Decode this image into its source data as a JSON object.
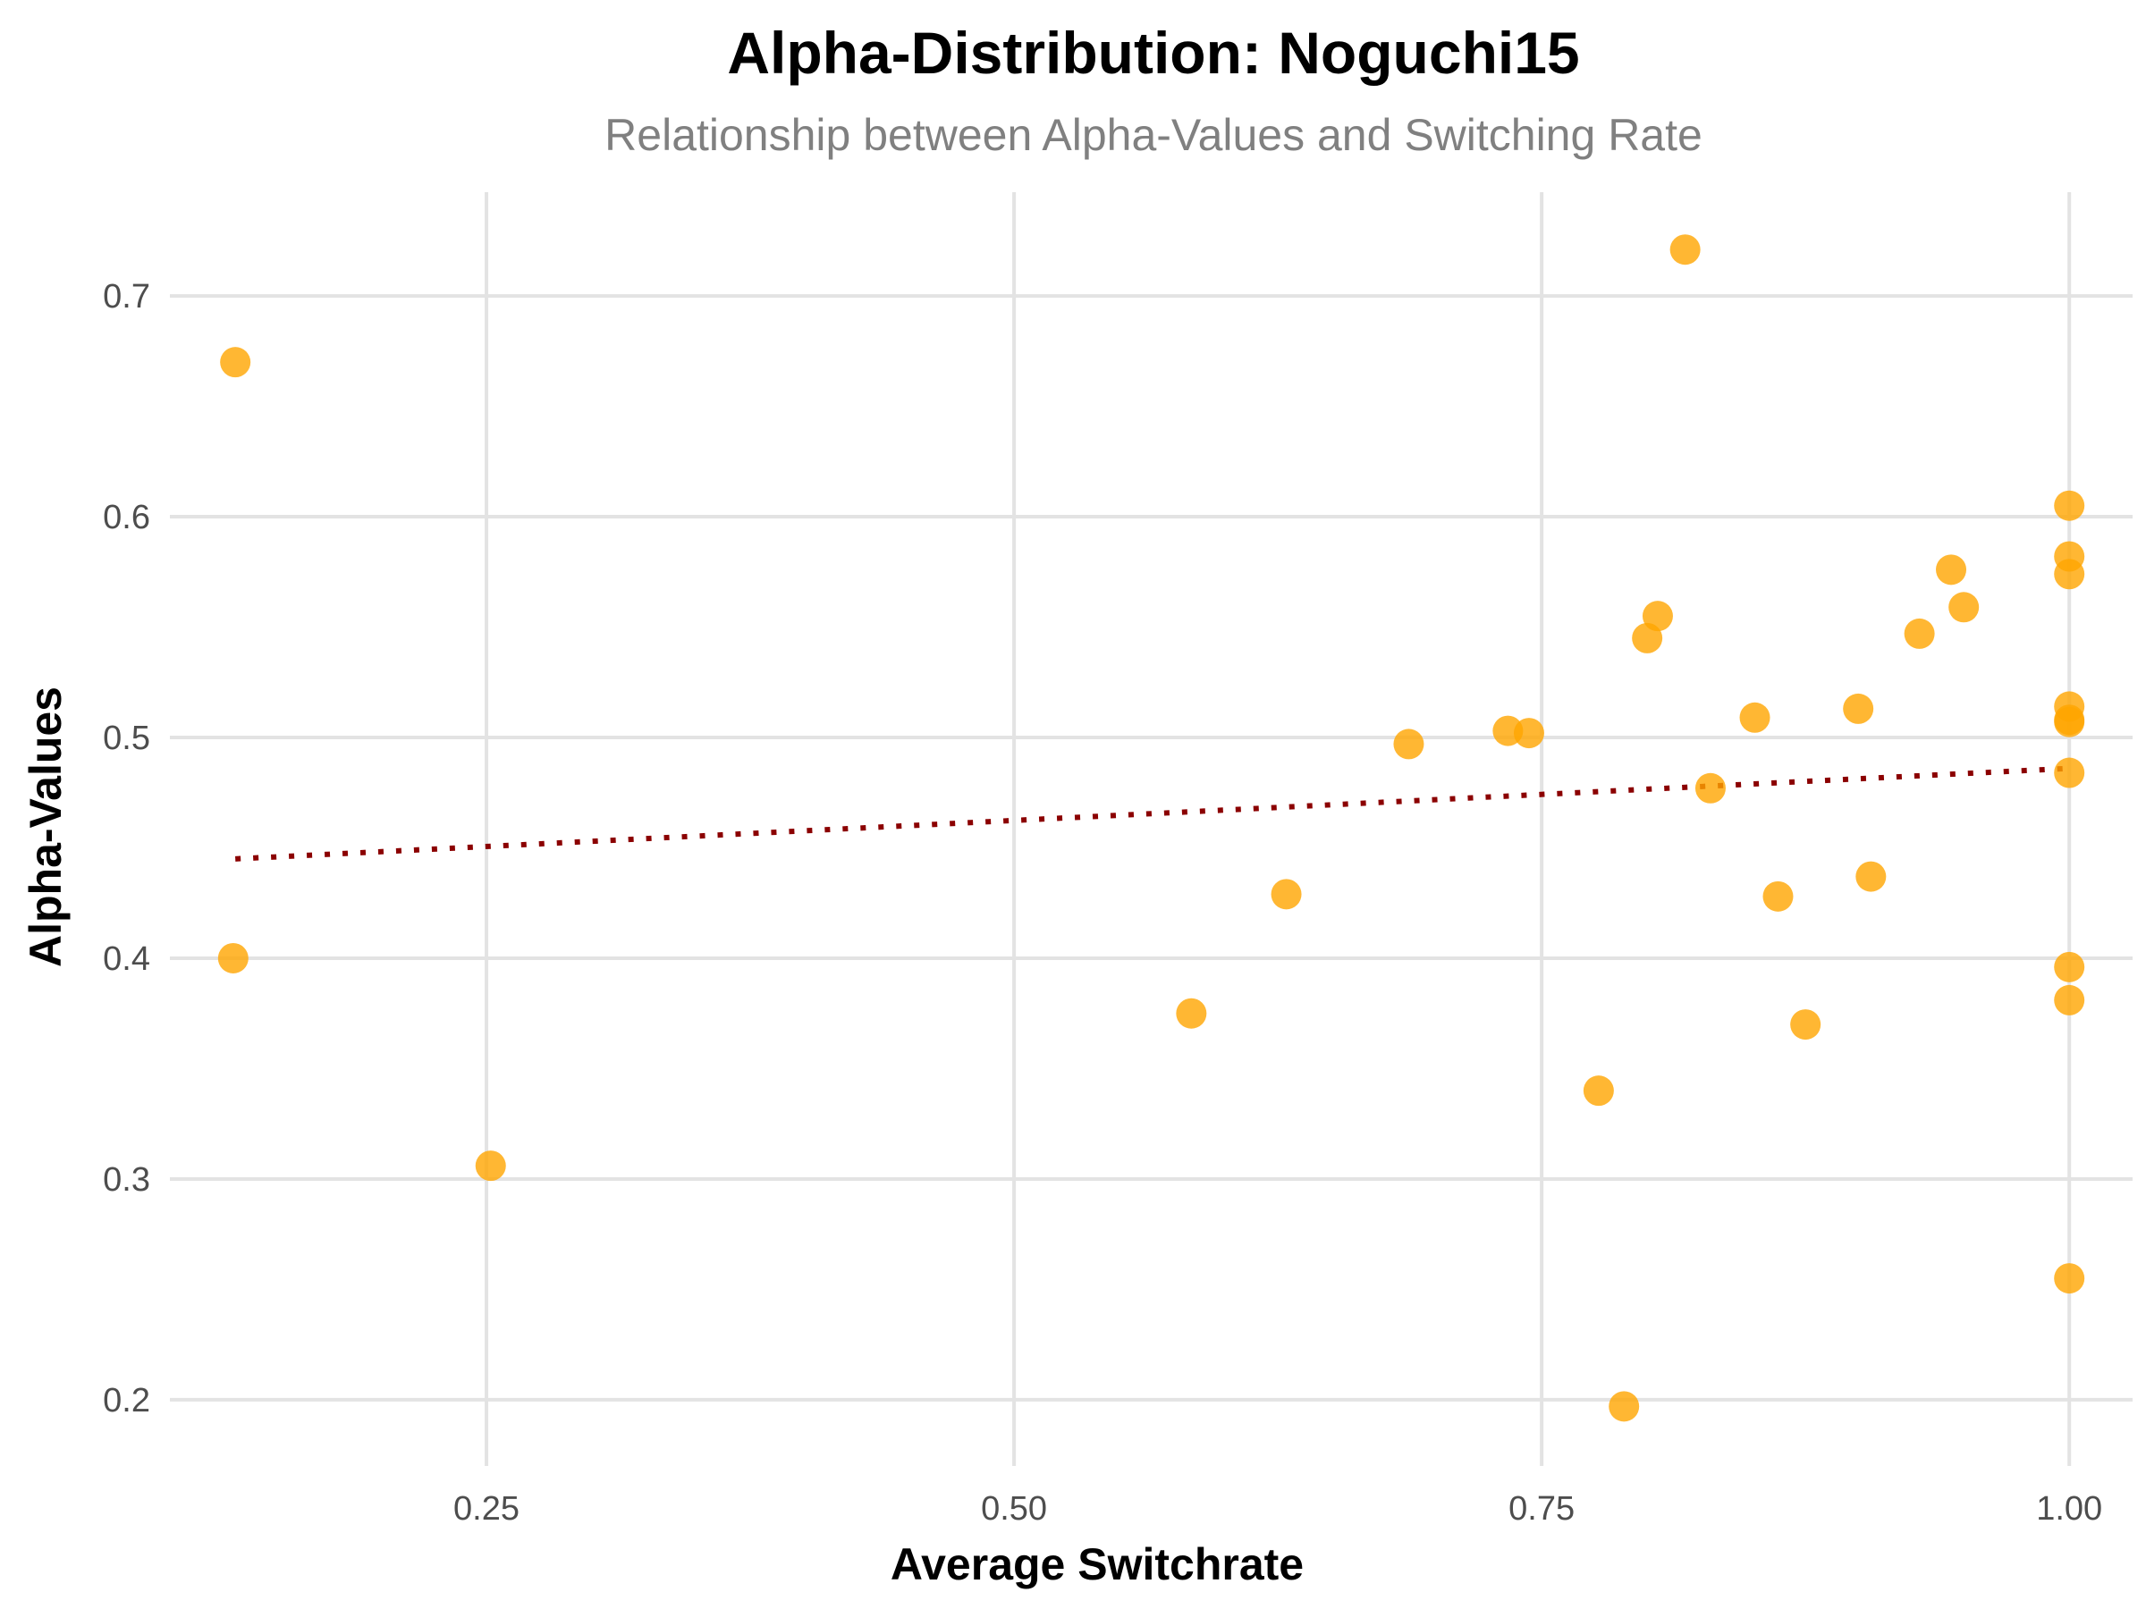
{
  "chart_data": {
    "type": "scatter",
    "title": "Alpha-Distribution: Noguchi15",
    "subtitle": "Relationship between Alpha-Values and Switching Rate",
    "xlabel": "Average Switchrate",
    "ylabel": "Alpha-Values",
    "xlim": [
      0.1,
      1.03
    ],
    "ylim": [
      0.17,
      0.747
    ],
    "x_ticks": [
      0.25,
      0.5,
      0.75,
      1.0
    ],
    "x_tick_labels": [
      "0.25",
      "0.50",
      "0.75",
      "1.00"
    ],
    "y_ticks": [
      0.2,
      0.3,
      0.4,
      0.5,
      0.6,
      0.7
    ],
    "y_tick_labels": [
      "0.2",
      "0.3",
      "0.4",
      "0.5",
      "0.6",
      "0.7"
    ],
    "grid": true,
    "legend": "none",
    "point_color": "#FFA500",
    "trend_color": "#8B0000",
    "series": [
      {
        "points": [
          {
            "x": 0.131,
            "y": 0.67
          },
          {
            "x": 0.13,
            "y": 0.4
          },
          {
            "x": 0.252,
            "y": 0.306
          },
          {
            "x": 0.584,
            "y": 0.375
          },
          {
            "x": 0.629,
            "y": 0.429
          },
          {
            "x": 0.687,
            "y": 0.497
          },
          {
            "x": 0.734,
            "y": 0.503
          },
          {
            "x": 0.744,
            "y": 0.502
          },
          {
            "x": 0.777,
            "y": 0.34
          },
          {
            "x": 0.789,
            "y": 0.197
          },
          {
            "x": 0.8,
            "y": 0.545
          },
          {
            "x": 0.805,
            "y": 0.555
          },
          {
            "x": 0.818,
            "y": 0.721
          },
          {
            "x": 0.83,
            "y": 0.477
          },
          {
            "x": 0.851,
            "y": 0.509
          },
          {
            "x": 0.862,
            "y": 0.428
          },
          {
            "x": 0.875,
            "y": 0.37
          },
          {
            "x": 0.9,
            "y": 0.513
          },
          {
            "x": 0.906,
            "y": 0.437
          },
          {
            "x": 0.929,
            "y": 0.547
          },
          {
            "x": 0.944,
            "y": 0.576
          },
          {
            "x": 0.95,
            "y": 0.559
          },
          {
            "x": 1.0,
            "y": 0.605
          },
          {
            "x": 1.0,
            "y": 0.582
          },
          {
            "x": 1.0,
            "y": 0.574
          },
          {
            "x": 1.0,
            "y": 0.514
          },
          {
            "x": 1.0,
            "y": 0.508
          },
          {
            "x": 1.0,
            "y": 0.507
          },
          {
            "x": 1.0,
            "y": 0.484
          },
          {
            "x": 1.0,
            "y": 0.396
          },
          {
            "x": 1.0,
            "y": 0.381
          },
          {
            "x": 1.0,
            "y": 0.255
          }
        ]
      }
    ],
    "trend_line": {
      "style": "dotted",
      "x": [
        0.131,
        1.0
      ],
      "y": [
        0.445,
        0.486
      ]
    }
  }
}
